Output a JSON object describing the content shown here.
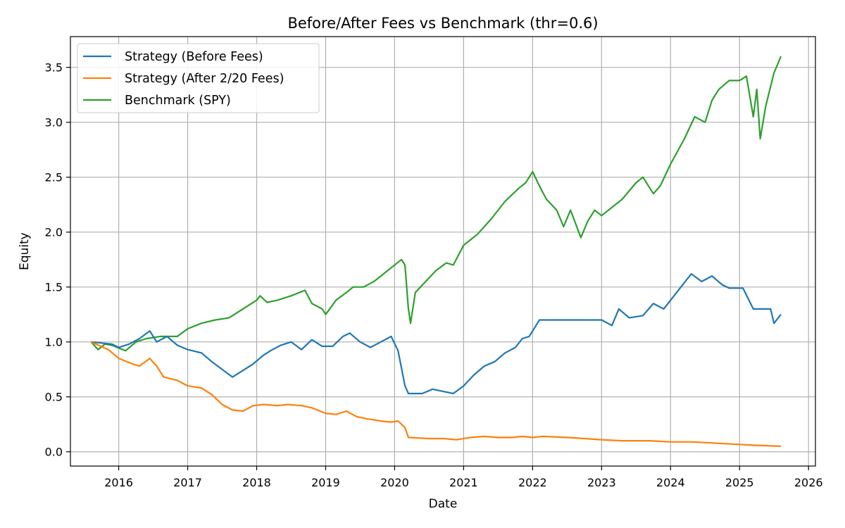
{
  "chart_data": {
    "type": "line",
    "title": "Before/After Fees vs Benchmark (thr=0.6)",
    "xlabel": "Date",
    "ylabel": "Equity",
    "xlim": [
      2015.3,
      2026.1
    ],
    "ylim": [
      -0.13,
      3.78
    ],
    "x_ticks": [
      2016,
      2017,
      2018,
      2019,
      2020,
      2021,
      2022,
      2023,
      2024,
      2025,
      2026
    ],
    "x_tick_labels": [
      "2016",
      "2017",
      "2018",
      "2019",
      "2020",
      "2021",
      "2022",
      "2023",
      "2024",
      "2025",
      "2026"
    ],
    "y_ticks": [
      0.0,
      0.5,
      1.0,
      1.5,
      2.0,
      2.5,
      3.0,
      3.5
    ],
    "y_tick_labels": [
      "0.0",
      "0.5",
      "1.0",
      "1.5",
      "2.0",
      "2.5",
      "3.0",
      "3.5"
    ],
    "grid": true,
    "legend_position": "upper-left",
    "series": [
      {
        "name": "Strategy (Before Fees)",
        "color": "#1f77b4",
        "x": [
          2015.6,
          2015.9,
          2016.0,
          2016.15,
          2016.3,
          2016.45,
          2016.55,
          2016.7,
          2016.85,
          2017.0,
          2017.2,
          2017.35,
          2017.5,
          2017.65,
          2017.8,
          2017.95,
          2018.1,
          2018.2,
          2018.35,
          2018.5,
          2018.65,
          2018.8,
          2018.95,
          2019.1,
          2019.25,
          2019.35,
          2019.5,
          2019.65,
          2019.8,
          2019.95,
          2020.05,
          2020.15,
          2020.2,
          2020.4,
          2020.55,
          2020.7,
          2020.85,
          2021.0,
          2021.15,
          2021.3,
          2021.45,
          2021.6,
          2021.75,
          2021.85,
          2021.95,
          2022.1,
          2022.3,
          2023.0,
          2023.15,
          2023.25,
          2023.4,
          2023.6,
          2023.75,
          2023.9,
          2024.05,
          2024.15,
          2024.3,
          2024.45,
          2024.6,
          2024.75,
          2024.85,
          2025.05,
          2025.2,
          2025.45,
          2025.5,
          2025.6
        ],
        "values": [
          1.0,
          0.98,
          0.95,
          0.98,
          1.03,
          1.1,
          1.0,
          1.05,
          0.97,
          0.93,
          0.9,
          0.82,
          0.75,
          0.68,
          0.74,
          0.8,
          0.88,
          0.92,
          0.97,
          1.0,
          0.93,
          1.02,
          0.96,
          0.96,
          1.05,
          1.08,
          1.0,
          0.95,
          1.0,
          1.05,
          0.92,
          0.6,
          0.53,
          0.53,
          0.57,
          0.55,
          0.53,
          0.6,
          0.7,
          0.78,
          0.82,
          0.9,
          0.95,
          1.03,
          1.05,
          1.2,
          1.2,
          1.2,
          1.15,
          1.3,
          1.22,
          1.24,
          1.35,
          1.3,
          1.42,
          1.5,
          1.62,
          1.55,
          1.6,
          1.52,
          1.49,
          1.49,
          1.3,
          1.3,
          1.17,
          1.25
        ]
      },
      {
        "name": "Strategy (After 2/20 Fees)",
        "color": "#ff7f0e",
        "x": [
          2015.6,
          2015.85,
          2016.0,
          2016.2,
          2016.3,
          2016.45,
          2016.55,
          2016.65,
          2016.85,
          2017.0,
          2017.2,
          2017.35,
          2017.5,
          2017.65,
          2017.8,
          2017.95,
          2018.1,
          2018.3,
          2018.45,
          2018.65,
          2018.8,
          2019.0,
          2019.15,
          2019.3,
          2019.45,
          2019.6,
          2019.8,
          2019.95,
          2020.05,
          2020.15,
          2020.2,
          2020.5,
          2020.7,
          2020.9,
          2021.1,
          2021.3,
          2021.5,
          2021.7,
          2021.85,
          2022.0,
          2022.15,
          2022.5,
          2023.0,
          2023.3,
          2023.7,
          2024.0,
          2024.3,
          2024.6,
          2024.9,
          2025.2,
          2025.6
        ],
        "values": [
          1.0,
          0.93,
          0.85,
          0.8,
          0.78,
          0.85,
          0.78,
          0.68,
          0.65,
          0.6,
          0.58,
          0.52,
          0.43,
          0.38,
          0.37,
          0.42,
          0.43,
          0.42,
          0.43,
          0.42,
          0.4,
          0.35,
          0.34,
          0.37,
          0.32,
          0.3,
          0.28,
          0.27,
          0.28,
          0.22,
          0.13,
          0.12,
          0.12,
          0.11,
          0.13,
          0.14,
          0.13,
          0.13,
          0.14,
          0.13,
          0.14,
          0.13,
          0.11,
          0.1,
          0.1,
          0.09,
          0.09,
          0.08,
          0.07,
          0.06,
          0.05
        ]
      },
      {
        "name": "Benchmark (SPY)",
        "color": "#2ca02c",
        "x": [
          2015.6,
          2015.7,
          2015.8,
          2015.9,
          2016.1,
          2016.25,
          2016.4,
          2016.6,
          2016.85,
          2017.0,
          2017.2,
          2017.4,
          2017.6,
          2017.8,
          2018.0,
          2018.05,
          2018.15,
          2018.3,
          2018.5,
          2018.7,
          2018.8,
          2018.95,
          2019.0,
          2019.15,
          2019.3,
          2019.4,
          2019.55,
          2019.7,
          2019.9,
          2020.1,
          2020.15,
          2020.2,
          2020.23,
          2020.3,
          2020.45,
          2020.6,
          2020.75,
          2020.85,
          2021.0,
          2021.2,
          2021.4,
          2021.6,
          2021.8,
          2021.9,
          2022.0,
          2022.1,
          2022.2,
          2022.35,
          2022.45,
          2022.55,
          2022.7,
          2022.8,
          2022.9,
          2023.0,
          2023.1,
          2023.3,
          2023.5,
          2023.6,
          2023.75,
          2023.85,
          2024.0,
          2024.2,
          2024.35,
          2024.5,
          2024.6,
          2024.7,
          2024.85,
          2025.0,
          2025.1,
          2025.2,
          2025.25,
          2025.3,
          2025.38,
          2025.5,
          2025.6
        ],
        "values": [
          1.0,
          0.93,
          0.98,
          0.97,
          0.92,
          1.0,
          1.03,
          1.05,
          1.05,
          1.12,
          1.17,
          1.2,
          1.22,
          1.3,
          1.38,
          1.42,
          1.36,
          1.38,
          1.42,
          1.47,
          1.35,
          1.3,
          1.25,
          1.38,
          1.45,
          1.5,
          1.5,
          1.55,
          1.65,
          1.75,
          1.7,
          1.3,
          1.17,
          1.45,
          1.55,
          1.65,
          1.72,
          1.7,
          1.88,
          1.98,
          2.12,
          2.28,
          2.4,
          2.45,
          2.55,
          2.42,
          2.3,
          2.2,
          2.05,
          2.2,
          1.95,
          2.1,
          2.2,
          2.15,
          2.2,
          2.3,
          2.45,
          2.5,
          2.35,
          2.42,
          2.62,
          2.85,
          3.05,
          3.0,
          3.2,
          3.3,
          3.38,
          3.38,
          3.42,
          3.05,
          3.3,
          2.85,
          3.15,
          3.45,
          3.6
        ]
      }
    ]
  }
}
